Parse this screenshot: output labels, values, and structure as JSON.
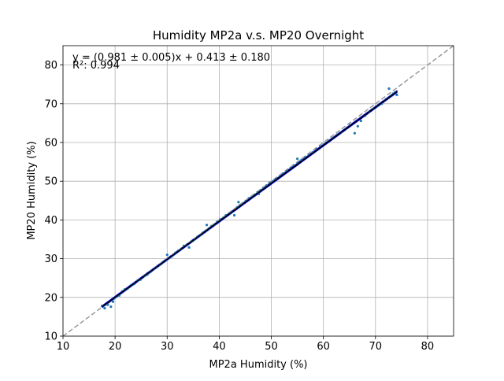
{
  "chart_data": {
    "type": "scatter",
    "title": "Humidity MP2a v.s. MP20 Overnight",
    "xlabel": "MP2a Humidity (%)",
    "ylabel": "MP20 Humidity (%)",
    "xlim": [
      10,
      85
    ],
    "ylim": [
      10,
      85
    ],
    "xticks": [
      10,
      20,
      30,
      40,
      50,
      60,
      70,
      80
    ],
    "yticks": [
      10,
      20,
      30,
      40,
      50,
      60,
      70,
      80
    ],
    "grid": true,
    "annotation": {
      "equation": "y = (0.981 ± 0.005)x + 0.413 ± 0.180",
      "r2": "R²: 0.994"
    },
    "fit": {
      "slope": 0.981,
      "intercept": 0.413,
      "x_range": [
        17.5,
        74.2
      ]
    },
    "identity_line": {
      "slope": 1,
      "intercept": 0
    },
    "colors": {
      "points": "#1f77b4",
      "fit": "#000000",
      "band": "#0000ff",
      "identity": "#999999",
      "grid": "#b0b0b0"
    },
    "series": [
      {
        "points": [
          [
            17.5,
            17.8
          ],
          [
            18.0,
            17.2
          ],
          [
            18.6,
            18.1
          ],
          [
            19.2,
            17.6
          ],
          [
            19.6,
            18.9
          ],
          [
            19.8,
            19.7
          ],
          [
            20.3,
            20.2
          ],
          [
            20.8,
            20.5
          ],
          [
            21.4,
            21.6
          ],
          [
            21.9,
            22.1
          ],
          [
            22.5,
            22.4
          ],
          [
            23.1,
            23.2
          ],
          [
            23.7,
            23.5
          ],
          [
            24.3,
            24.3
          ],
          [
            24.9,
            24.6
          ],
          [
            25.6,
            25.5
          ],
          [
            26.2,
            25.9
          ],
          [
            26.8,
            26.6
          ],
          [
            27.4,
            27.3
          ],
          [
            28.0,
            27.8
          ],
          [
            28.6,
            28.4
          ],
          [
            29.2,
            29.1
          ],
          [
            29.8,
            29.6
          ],
          [
            30.4,
            30.2
          ],
          [
            31.0,
            30.7
          ],
          [
            31.6,
            31.5
          ],
          [
            32.1,
            32.0
          ],
          [
            32.7,
            32.5
          ],
          [
            33.2,
            33.3
          ],
          [
            33.8,
            33.6
          ],
          [
            34.2,
            32.9
          ],
          [
            34.7,
            34.5
          ],
          [
            35.2,
            34.9
          ],
          [
            35.8,
            35.6
          ],
          [
            36.3,
            36.0
          ],
          [
            36.9,
            36.7
          ],
          [
            37.4,
            37.2
          ],
          [
            38.0,
            37.7
          ],
          [
            38.5,
            38.4
          ],
          [
            39.1,
            38.8
          ],
          [
            39.6,
            39.5
          ],
          [
            40.2,
            40.1
          ],
          [
            40.8,
            40.5
          ],
          [
            41.3,
            41.2
          ],
          [
            41.9,
            41.6
          ],
          [
            42.4,
            42.0
          ],
          [
            42.9,
            41.2
          ],
          [
            43.5,
            43.3
          ],
          [
            44.0,
            43.8
          ],
          [
            44.6,
            44.2
          ],
          [
            45.1,
            44.9
          ],
          [
            45.7,
            45.6
          ],
          [
            46.3,
            45.9
          ],
          [
            46.8,
            46.5
          ],
          [
            47.4,
            47.1
          ],
          [
            48.0,
            47.7
          ],
          [
            48.5,
            48.2
          ],
          [
            49.1,
            48.9
          ],
          [
            49.7,
            49.6
          ],
          [
            50.3,
            50.0
          ],
          [
            50.9,
            50.6
          ],
          [
            51.6,
            51.2
          ],
          [
            52.3,
            52.0
          ],
          [
            53.0,
            52.6
          ],
          [
            53.7,
            53.4
          ],
          [
            54.4,
            54.0
          ],
          [
            55.1,
            54.7
          ],
          [
            55.8,
            55.5
          ],
          [
            56.5,
            56.1
          ],
          [
            57.2,
            56.8
          ],
          [
            58.0,
            57.5
          ],
          [
            58.7,
            58.3
          ],
          [
            59.4,
            59.0
          ],
          [
            60.2,
            59.6
          ],
          [
            61.0,
            60.4
          ],
          [
            61.8,
            61.2
          ],
          [
            62.6,
            62.0
          ],
          [
            63.5,
            62.7
          ],
          [
            64.3,
            63.5
          ],
          [
            65.1,
            64.5
          ],
          [
            66.0,
            62.4
          ],
          [
            66.6,
            64.2
          ],
          [
            67.2,
            65.6
          ],
          [
            68.0,
            66.9
          ],
          [
            68.8,
            67.9
          ],
          [
            69.6,
            68.7
          ],
          [
            70.4,
            69.4
          ],
          [
            71.2,
            70.0
          ],
          [
            71.8,
            70.8
          ],
          [
            72.4,
            71.5
          ],
          [
            72.9,
            72.0
          ],
          [
            73.4,
            72.6
          ],
          [
            73.8,
            73.0
          ],
          [
            74.1,
            72.3
          ],
          [
            72.6,
            73.9
          ],
          [
            30.0,
            31.0
          ],
          [
            43.7,
            44.6
          ],
          [
            47.6,
            46.7
          ],
          [
            55.0,
            55.8
          ],
          [
            37.6,
            38.7
          ]
        ]
      }
    ]
  }
}
